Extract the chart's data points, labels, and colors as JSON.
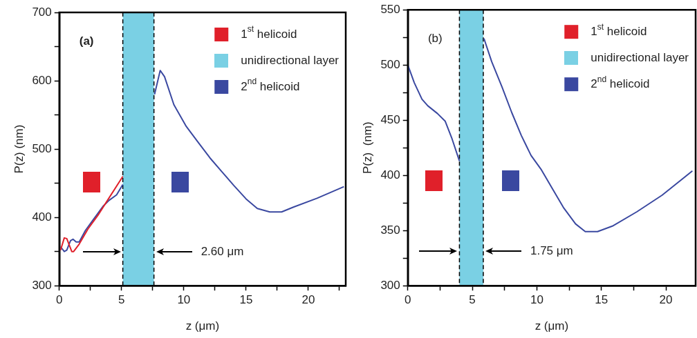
{
  "chart_data": [
    {
      "type": "line",
      "xlabel": "z (μm)",
      "ylabel": "P(z) (nm)",
      "annotations": [
        "(a)",
        "2.60 μm",
        "unidirectional layer"
      ],
      "legend": "top right",
      "xlim": [
        0,
        23
      ],
      "ylim": [
        300,
        700
      ],
      "xticks": [
        0,
        {
          "value": 2.5,
          "label": null
        },
        5,
        {
          "value": 7.5,
          "label": null
        },
        10,
        {
          "value": 12.5,
          "label": null
        },
        15,
        {
          "value": 17.5,
          "label": null
        },
        20,
        {
          "value": 22.5,
          "label": null
        }
      ],
      "yticks": [
        300,
        {
          "value": 350,
          "label": null
        },
        400,
        {
          "value": 450,
          "label": null
        },
        500,
        {
          "value": 550,
          "label": null
        },
        600,
        {
          "value": 650,
          "label": null
        },
        700
      ],
      "bands": [
        {
          "axis": "x",
          "from": 5.1,
          "to": 7.6,
          "color": "#7ad0e4"
        }
      ],
      "ref_lines": [
        {
          "axis": "x",
          "value": 5.1,
          "color": "#000000",
          "line_style": "dashed"
        },
        {
          "axis": "x",
          "value": 7.6,
          "color": "#000000",
          "line_style": "dashed"
        }
      ],
      "series": [
        {
          "name": "1$^{st}$ helicoid",
          "color": "#e0202a",
          "x": [
            0.1,
            0.4,
            0.6,
            1.0,
            1.15,
            1.6,
            2.3,
            3.1,
            3.8,
            5.1
          ],
          "values": [
            352,
            370,
            369,
            350,
            350,
            361,
            383,
            403,
            423,
            460
          ]
        },
        {
          "name": "2$^{nd}$ helicoid",
          "color": "#3a48a0",
          "x": [
            0.1,
            0.4,
            0.6,
            0.9,
            1.1,
            1.35,
            1.6,
            2.1,
            2.7,
            3.5,
            4.0,
            4.6,
            5.1,
            6.4,
            7.65,
            8.1,
            8.45,
            9.2,
            10.2,
            11.1,
            12.1,
            13.05,
            14.0,
            15.0,
            15.9,
            16.9,
            17.85,
            18.8,
            20.7,
            22.85
          ],
          "values": [
            357,
            350,
            352,
            366,
            368,
            364,
            364,
            381,
            396,
            416,
            425,
            433,
            448,
            null,
            580,
            615,
            606,
            565,
            533,
            511,
            487,
            467,
            447,
            427,
            413,
            408,
            408,
            415,
            428,
            445
          ]
        }
      ]
    },
    {
      "type": "line",
      "xlabel": "z (μm)",
      "ylabel": "P(z)  (nm)",
      "annotations": [
        "(b)",
        "1.75 μm",
        "unidirectional layer"
      ],
      "legend": "top right",
      "xlim": [
        0,
        22.3
      ],
      "ylim": [
        300,
        550
      ],
      "xticks": [
        0,
        {
          "value": 2.5,
          "label": null
        },
        5,
        {
          "value": 7.5,
          "label": null
        },
        10,
        {
          "value": 12.5,
          "label": null
        },
        15,
        {
          "value": 17.5,
          "label": null
        },
        20
      ],
      "yticks": [
        300,
        {
          "value": 325,
          "label": null
        },
        350,
        {
          "value": 375,
          "label": null
        },
        400,
        {
          "value": 425,
          "label": null
        },
        450,
        {
          "value": 475,
          "label": null
        },
        500,
        {
          "value": 525,
          "label": null
        },
        550
      ],
      "bands": [
        {
          "axis": "x",
          "from": 4.0,
          "to": 5.85,
          "color": "#7ad0e4"
        }
      ],
      "ref_lines": [
        {
          "axis": "x",
          "value": 4.0,
          "color": "#000000",
          "line_style": "dashed"
        },
        {
          "axis": "x",
          "value": 5.85,
          "color": "#000000",
          "line_style": "dashed"
        }
      ],
      "series": [
        {
          "name": "1$^{st}$ helicoid",
          "color": "#e0202a"
        },
        {
          "name": "2$^{nd}$ helicoid",
          "color": "#3a48a0",
          "x": [
            0,
            0.5,
            1.1,
            1.55,
            2.3,
            2.9,
            3.4,
            4.0,
            4.9,
            5.9,
            6.5,
            7.3,
            8.05,
            8.8,
            9.55,
            10.35,
            11.1,
            12.05,
            13.0,
            13.75,
            14.7,
            15.85,
            17.75,
            19.7,
            22.05
          ],
          "values": [
            500,
            484,
            469,
            463,
            456,
            449,
            434,
            413,
            null,
            524,
            503,
            480,
            457,
            436,
            418,
            405,
            390,
            371,
            356,
            349,
            349,
            354,
            367,
            382,
            404
          ]
        }
      ]
    }
  ]
}
